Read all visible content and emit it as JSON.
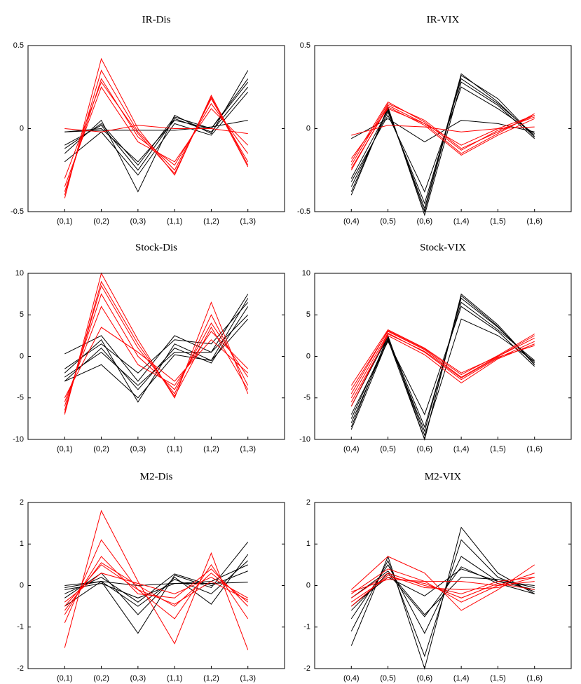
{
  "chart_data": [
    {
      "type": "line",
      "title": "IR-Dis",
      "categories": [
        "(0,1)",
        "(0,2)",
        "(0,3)",
        "(1,1)",
        "(1,2)",
        "(1,3)"
      ],
      "ylim": [
        -0.5,
        0.5
      ],
      "yticks": [
        -0.5,
        0,
        0.5
      ],
      "series": [
        {
          "color": "#000000",
          "values": [
            -0.02,
            0.0,
            -0.2,
            0.05,
            0.0,
            0.3
          ]
        },
        {
          "color": "#000000",
          "values": [
            -0.15,
            0.05,
            -0.38,
            0.08,
            -0.03,
            0.35
          ]
        },
        {
          "color": "#000000",
          "values": [
            -0.1,
            0.02,
            -0.25,
            0.06,
            -0.02,
            0.25
          ]
        },
        {
          "color": "#000000",
          "values": [
            -0.2,
            -0.02,
            -0.28,
            0.03,
            -0.04,
            0.22
          ]
        },
        {
          "color": "#000000",
          "values": [
            -0.12,
            0.03,
            -0.22,
            0.07,
            0.0,
            0.28
          ]
        },
        {
          "color": "#000000",
          "values": [
            -0.02,
            -0.01,
            -0.01,
            -0.01,
            0.01,
            0.05
          ]
        },
        {
          "color": "#ff0000",
          "values": [
            -0.42,
            0.42,
            0.0,
            -0.28,
            0.2,
            -0.22
          ]
        },
        {
          "color": "#ff0000",
          "values": [
            -0.4,
            0.35,
            -0.02,
            -0.25,
            0.18,
            -0.2
          ]
        },
        {
          "color": "#ff0000",
          "values": [
            -0.38,
            0.3,
            -0.05,
            -0.22,
            0.15,
            -0.15
          ]
        },
        {
          "color": "#ff0000",
          "values": [
            -0.35,
            0.25,
            -0.08,
            -0.2,
            0.12,
            -0.1
          ]
        },
        {
          "color": "#ff0000",
          "values": [
            -0.3,
            0.28,
            -0.03,
            -0.27,
            0.19,
            -0.23
          ]
        },
        {
          "color": "#ff0000",
          "values": [
            0.0,
            -0.02,
            0.02,
            0.0,
            0.0,
            -0.03
          ]
        }
      ]
    },
    {
      "type": "line",
      "title": "IR-VIX",
      "categories": [
        "(0,4)",
        "(0,5)",
        "(0,6)",
        "(1,4)",
        "(1,5)",
        "(1,6)"
      ],
      "ylim": [
        -0.5,
        0.5
      ],
      "yticks": [
        -0.5,
        0,
        0.5
      ],
      "series": [
        {
          "color": "#000000",
          "values": [
            -0.38,
            0.12,
            -0.5,
            0.32,
            0.18,
            -0.05
          ]
        },
        {
          "color": "#000000",
          "values": [
            -0.35,
            0.1,
            -0.45,
            0.3,
            0.15,
            -0.04
          ]
        },
        {
          "color": "#000000",
          "values": [
            -0.4,
            0.13,
            -0.52,
            0.28,
            0.14,
            -0.06
          ]
        },
        {
          "color": "#000000",
          "values": [
            -0.32,
            0.08,
            -0.38,
            0.25,
            0.12,
            -0.03
          ]
        },
        {
          "color": "#000000",
          "values": [
            -0.3,
            0.11,
            -0.48,
            0.33,
            0.16,
            -0.05
          ]
        },
        {
          "color": "#000000",
          "values": [
            -0.06,
            0.06,
            -0.08,
            0.05,
            0.03,
            -0.02
          ]
        },
        {
          "color": "#ff0000",
          "values": [
            -0.22,
            0.15,
            0.05,
            -0.12,
            -0.02,
            0.08
          ]
        },
        {
          "color": "#ff0000",
          "values": [
            -0.25,
            0.14,
            0.03,
            -0.15,
            -0.03,
            0.09
          ]
        },
        {
          "color": "#ff0000",
          "values": [
            -0.2,
            0.16,
            0.04,
            -0.13,
            -0.01,
            0.07
          ]
        },
        {
          "color": "#ff0000",
          "values": [
            -0.24,
            0.13,
            0.02,
            -0.16,
            -0.04,
            0.06
          ]
        },
        {
          "color": "#ff0000",
          "values": [
            -0.18,
            0.12,
            0.03,
            -0.1,
            0.0,
            0.08
          ]
        },
        {
          "color": "#ff0000",
          "values": [
            -0.04,
            0.02,
            0.01,
            -0.02,
            0.0,
            0.01
          ]
        }
      ]
    },
    {
      "type": "line",
      "title": "Stock-Dis",
      "categories": [
        "(0,1)",
        "(0,2)",
        "(0,3)",
        "(1,1)",
        "(1,2)",
        "(1,3)"
      ],
      "ylim": [
        -10,
        10
      ],
      "yticks": [
        -10,
        -5,
        0,
        5,
        10
      ],
      "series": [
        {
          "color": "#000000",
          "values": [
            0.3,
            2.5,
            -3,
            2.5,
            0.5,
            7.5
          ]
        },
        {
          "color": "#000000",
          "values": [
            -2,
            2,
            -5.5,
            1.5,
            -0.5,
            7
          ]
        },
        {
          "color": "#000000",
          "values": [
            -3,
            1,
            -4,
            1,
            -0.8,
            6
          ]
        },
        {
          "color": "#000000",
          "values": [
            -2.5,
            0.5,
            -3.5,
            0.5,
            0.5,
            5
          ]
        },
        {
          "color": "#000000",
          "values": [
            -1.5,
            1.5,
            -2,
            2,
            1.5,
            6.5
          ]
        },
        {
          "color": "#000000",
          "values": [
            -3,
            -1,
            -5,
            0.2,
            -0.5,
            4.5
          ]
        },
        {
          "color": "#ff0000",
          "values": [
            -7,
            10,
            2,
            -5,
            6.5,
            -4.5
          ]
        },
        {
          "color": "#ff0000",
          "values": [
            -6.5,
            8.5,
            1,
            -4.5,
            5,
            -3.5
          ]
        },
        {
          "color": "#ff0000",
          "values": [
            -6,
            7.5,
            0,
            -4,
            4,
            -2.5
          ]
        },
        {
          "color": "#ff0000",
          "values": [
            -5.5,
            6,
            -1,
            -3.5,
            3,
            -1.5
          ]
        },
        {
          "color": "#ff0000",
          "values": [
            -6.8,
            9,
            1.5,
            -4.8,
            3.5,
            -4
          ]
        },
        {
          "color": "#ff0000",
          "values": [
            -5,
            3.5,
            0.5,
            -3,
            2,
            -2
          ]
        }
      ]
    },
    {
      "type": "line",
      "title": "Stock-VIX",
      "categories": [
        "(0,4)",
        "(0,5)",
        "(0,6)",
        "(1,4)",
        "(1,5)",
        "(1,6)"
      ],
      "ylim": [
        -10,
        10
      ],
      "yticks": [
        -10,
        -5,
        0,
        5,
        10
      ],
      "series": [
        {
          "color": "#000000",
          "values": [
            -8.5,
            2.5,
            -10,
            7.5,
            3.8,
            -1
          ]
        },
        {
          "color": "#000000",
          "values": [
            -8,
            2,
            -9,
            7,
            3.5,
            -0.8
          ]
        },
        {
          "color": "#000000",
          "values": [
            -7.5,
            2.2,
            -8.5,
            6.5,
            3.2,
            -0.5
          ]
        },
        {
          "color": "#000000",
          "values": [
            -7,
            1.8,
            -7,
            6,
            3,
            -1.2
          ]
        },
        {
          "color": "#000000",
          "values": [
            -6,
            2.4,
            -9.5,
            4.5,
            2.5,
            -0.6
          ]
        },
        {
          "color": "#000000",
          "values": [
            -8.8,
            2,
            -10,
            7.3,
            3.6,
            -1
          ]
        },
        {
          "color": "#ff0000",
          "values": [
            -3.5,
            3.2,
            1,
            -2,
            0,
            2.5
          ]
        },
        {
          "color": "#ff0000",
          "values": [
            -4,
            3,
            0.8,
            -2.5,
            0,
            2.2
          ]
        },
        {
          "color": "#ff0000",
          "values": [
            -5,
            2.8,
            0.5,
            -2.8,
            -0.2,
            1.8
          ]
        },
        {
          "color": "#ff0000",
          "values": [
            -5.5,
            2.5,
            0.2,
            -3.2,
            -0.3,
            1.5
          ]
        },
        {
          "color": "#ff0000",
          "values": [
            -4.5,
            3.1,
            0.9,
            -2.2,
            0.1,
            2.7
          ]
        },
        {
          "color": "#ff0000",
          "values": [
            -6,
            2.7,
            0.6,
            -2.6,
            -0.1,
            1.3
          ]
        }
      ]
    },
    {
      "type": "line",
      "title": "M2-Dis",
      "categories": [
        "(0,1)",
        "(0,2)",
        "(0,3)",
        "(1,1)",
        "(1,2)",
        "(1,3)"
      ],
      "ylim": [
        -2,
        2
      ],
      "yticks": [
        -2,
        -1,
        0,
        1,
        2
      ],
      "series": [
        {
          "color": "#000000",
          "values": [
            -0.05,
            0.1,
            -1.15,
            0.25,
            -0.05,
            1.05
          ]
        },
        {
          "color": "#000000",
          "values": [
            -0.3,
            0.3,
            -0.7,
            0.2,
            -0.45,
            0.75
          ]
        },
        {
          "color": "#000000",
          "values": [
            -0.5,
            0.1,
            -0.5,
            0.15,
            -0.2,
            0.6
          ]
        },
        {
          "color": "#000000",
          "values": [
            -0.1,
            0.05,
            -0.3,
            0.05,
            0.1,
            0.5
          ]
        },
        {
          "color": "#000000",
          "values": [
            -0.2,
            0.2,
            -0.4,
            0.28,
            0.0,
            0.35
          ]
        },
        {
          "color": "#000000",
          "values": [
            0.0,
            0.1,
            0.0,
            0.05,
            0.05,
            0.08
          ]
        },
        {
          "color": "#ff0000",
          "values": [
            -1.5,
            1.8,
            0.1,
            -1.4,
            0.78,
            -1.55
          ]
        },
        {
          "color": "#ff0000",
          "values": [
            -0.9,
            1.1,
            -0.1,
            -0.8,
            0.5,
            -0.8
          ]
        },
        {
          "color": "#ff0000",
          "values": [
            -0.6,
            0.55,
            0.0,
            -0.5,
            0.3,
            -0.4
          ]
        },
        {
          "color": "#ff0000",
          "values": [
            -0.7,
            0.7,
            -0.2,
            -0.3,
            0.4,
            -0.5
          ]
        },
        {
          "color": "#ff0000",
          "values": [
            -0.4,
            0.3,
            0.05,
            -0.2,
            0.2,
            -0.3
          ]
        },
        {
          "color": "#ff0000",
          "values": [
            -0.5,
            0.5,
            -0.1,
            -0.45,
            0.1,
            -0.35
          ]
        }
      ]
    },
    {
      "type": "line",
      "title": "M2-VIX",
      "categories": [
        "(0,4)",
        "(0,5)",
        "(0,6)",
        "(1,4)",
        "(1,5)",
        "(1,6)"
      ],
      "ylim": [
        -2,
        2
      ],
      "yticks": [
        -2,
        -1,
        0,
        1,
        2
      ],
      "series": [
        {
          "color": "#000000",
          "values": [
            -1.45,
            0.7,
            -2.0,
            1.4,
            0.3,
            -0.2
          ]
        },
        {
          "color": "#000000",
          "values": [
            -1.1,
            0.6,
            -1.7,
            1.1,
            0.2,
            -0.15
          ]
        },
        {
          "color": "#000000",
          "values": [
            -0.8,
            0.5,
            -1.15,
            0.7,
            0.1,
            -0.1
          ]
        },
        {
          "color": "#000000",
          "values": [
            -0.6,
            0.3,
            -0.75,
            0.45,
            0.05,
            -0.2
          ]
        },
        {
          "color": "#000000",
          "values": [
            -0.5,
            0.2,
            -0.25,
            0.4,
            0.1,
            0.0
          ]
        },
        {
          "color": "#000000",
          "values": [
            -0.3,
            0.35,
            -0.7,
            0.2,
            0.15,
            -0.05
          ]
        },
        {
          "color": "#ff0000",
          "values": [
            -0.1,
            0.7,
            0.3,
            -0.6,
            -0.1,
            0.5
          ]
        },
        {
          "color": "#ff0000",
          "values": [
            -0.2,
            0.4,
            0.1,
            -0.4,
            0.0,
            0.3
          ]
        },
        {
          "color": "#ff0000",
          "values": [
            -0.3,
            0.3,
            0.0,
            -0.2,
            0.1,
            0.2
          ]
        },
        {
          "color": "#ff0000",
          "values": [
            -0.4,
            0.2,
            0.05,
            -0.3,
            0.05,
            -0.1
          ]
        },
        {
          "color": "#ff0000",
          "values": [
            -0.15,
            0.15,
            0.1,
            0.1,
            0.0,
            0.1
          ]
        },
        {
          "color": "#ff0000",
          "values": [
            -0.5,
            0.25,
            -0.05,
            -0.1,
            -0.05,
            0.2
          ]
        }
      ]
    }
  ]
}
